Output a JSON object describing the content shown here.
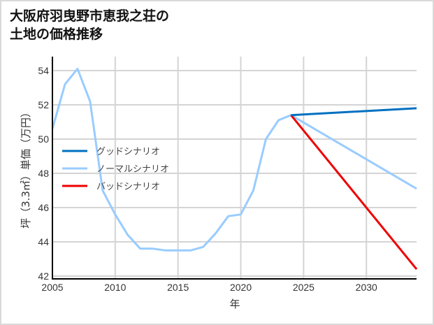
{
  "title_line1": "大阪府羽曳野市恵我之荘の",
  "title_line2": "土地の価格推移",
  "chart_data": {
    "type": "line",
    "title": "大阪府羽曳野市恵我之荘の土地の価格推移",
    "xlabel": "年",
    "ylabel": "坪（3.3㎡）単価（万円）",
    "xlim": [
      2005,
      2034
    ],
    "ylim": [
      41.8,
      54.8
    ],
    "xticks": [
      2005,
      2010,
      2015,
      2020,
      2025,
      2030
    ],
    "yticks": [
      42,
      44,
      46,
      48,
      50,
      52,
      54
    ],
    "grid": true,
    "legend_position": "center-left",
    "series": [
      {
        "name": "グッドシナリオ",
        "color": "#0070c0",
        "x": [
          2024,
          2034
        ],
        "values": [
          51.4,
          51.8
        ]
      },
      {
        "name": "ノーマルシナリオ",
        "color": "#99ccff",
        "x": [
          2005,
          2006,
          2007,
          2008,
          2009,
          2010,
          2011,
          2012,
          2013,
          2014,
          2015,
          2016,
          2017,
          2018,
          2019,
          2020,
          2021,
          2022,
          2023,
          2024,
          2034
        ],
        "values": [
          50.6,
          53.2,
          54.1,
          52.2,
          47.0,
          45.6,
          44.4,
          43.6,
          43.6,
          43.5,
          43.5,
          43.5,
          43.7,
          44.5,
          45.5,
          45.6,
          47.0,
          50.0,
          51.1,
          51.4,
          47.1
        ]
      },
      {
        "name": "バッドシナリオ",
        "color": "#ee0000",
        "x": [
          2024,
          2034
        ],
        "values": [
          51.4,
          42.4
        ]
      }
    ]
  }
}
